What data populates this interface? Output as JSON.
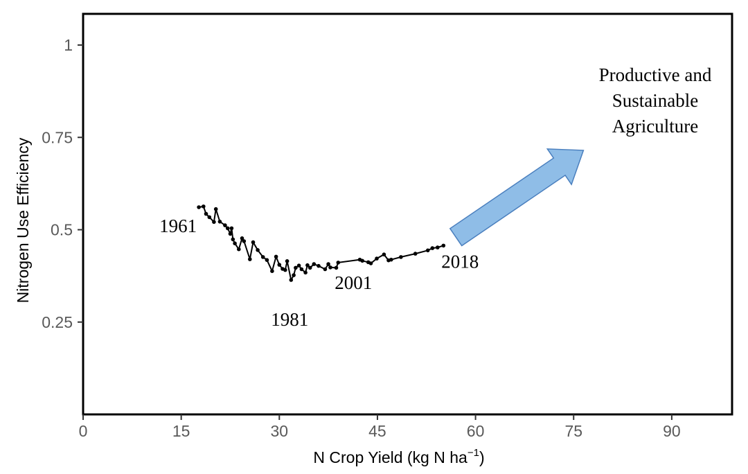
{
  "chart_data": {
    "type": "line",
    "xlabel": "N Crop Yield (kg N ha",
    "xlabel_superscript": "−1",
    "xlabel_suffix": ")",
    "ylabel": "Nitrogen Use Efficiency",
    "xlim": [
      0,
      99
    ],
    "ylim": [
      0,
      1.05
    ],
    "x_ticks": [
      0,
      15,
      30,
      45,
      60,
      75,
      90
    ],
    "y_ticks": [
      0.25,
      0.5,
      0.75,
      1
    ],
    "y_tick_labels": [
      "0.25",
      "0.5",
      "0.75",
      "1"
    ],
    "grid": false,
    "series": [
      {
        "color": "#000000",
        "x": [
          17.7,
          18.4,
          18.8,
          19.3,
          20.0,
          20.3,
          20.9,
          21.7,
          22.1,
          22.5,
          22.7,
          22.9,
          23.2,
          23.8,
          24.3,
          24.6,
          25.5,
          26.0,
          26.7,
          27.5,
          28.1,
          28.9,
          29.5,
          30.0,
          30.5,
          30.9,
          31.2,
          31.8,
          32.2,
          32.5,
          33.0,
          33.4,
          34.0,
          34.3,
          34.7,
          35.3,
          36.0,
          37.0,
          37.5,
          37.8,
          38.7,
          39.0,
          42.3,
          42.7,
          43.6,
          44.0,
          44.9,
          46.0,
          46.7,
          47.1,
          48.6,
          50.8,
          52.7,
          53.4,
          54.2,
          55.1
        ],
        "y": [
          0.561,
          0.563,
          0.543,
          0.534,
          0.521,
          0.556,
          0.522,
          0.512,
          0.504,
          0.489,
          0.504,
          0.474,
          0.463,
          0.447,
          0.477,
          0.469,
          0.42,
          0.466,
          0.445,
          0.426,
          0.418,
          0.388,
          0.427,
          0.405,
          0.394,
          0.391,
          0.415,
          0.364,
          0.377,
          0.397,
          0.403,
          0.393,
          0.384,
          0.404,
          0.397,
          0.407,
          0.402,
          0.393,
          0.407,
          0.398,
          0.397,
          0.411,
          0.419,
          0.416,
          0.412,
          0.409,
          0.422,
          0.433,
          0.417,
          0.419,
          0.426,
          0.435,
          0.444,
          0.45,
          0.452,
          0.457
        ]
      }
    ],
    "year_labels": [
      {
        "text": "1961",
        "x": 17.7,
        "y": 0.561
      },
      {
        "text": "1981",
        "x": 31.8,
        "y": 0.364
      },
      {
        "text": "2001",
        "x": 39.0,
        "y": 0.4
      },
      {
        "text": "2018",
        "x": 55.1,
        "y": 0.457
      }
    ],
    "annotation": {
      "lines": [
        "Productive and",
        "Sustainable",
        "Agriculture"
      ],
      "arrow_color": "#8fbde7",
      "arrow_stroke": "#4a7fbe",
      "arrow_from": [
        57.0,
        0.48
      ],
      "arrow_to": [
        76.5,
        0.715
      ]
    }
  }
}
